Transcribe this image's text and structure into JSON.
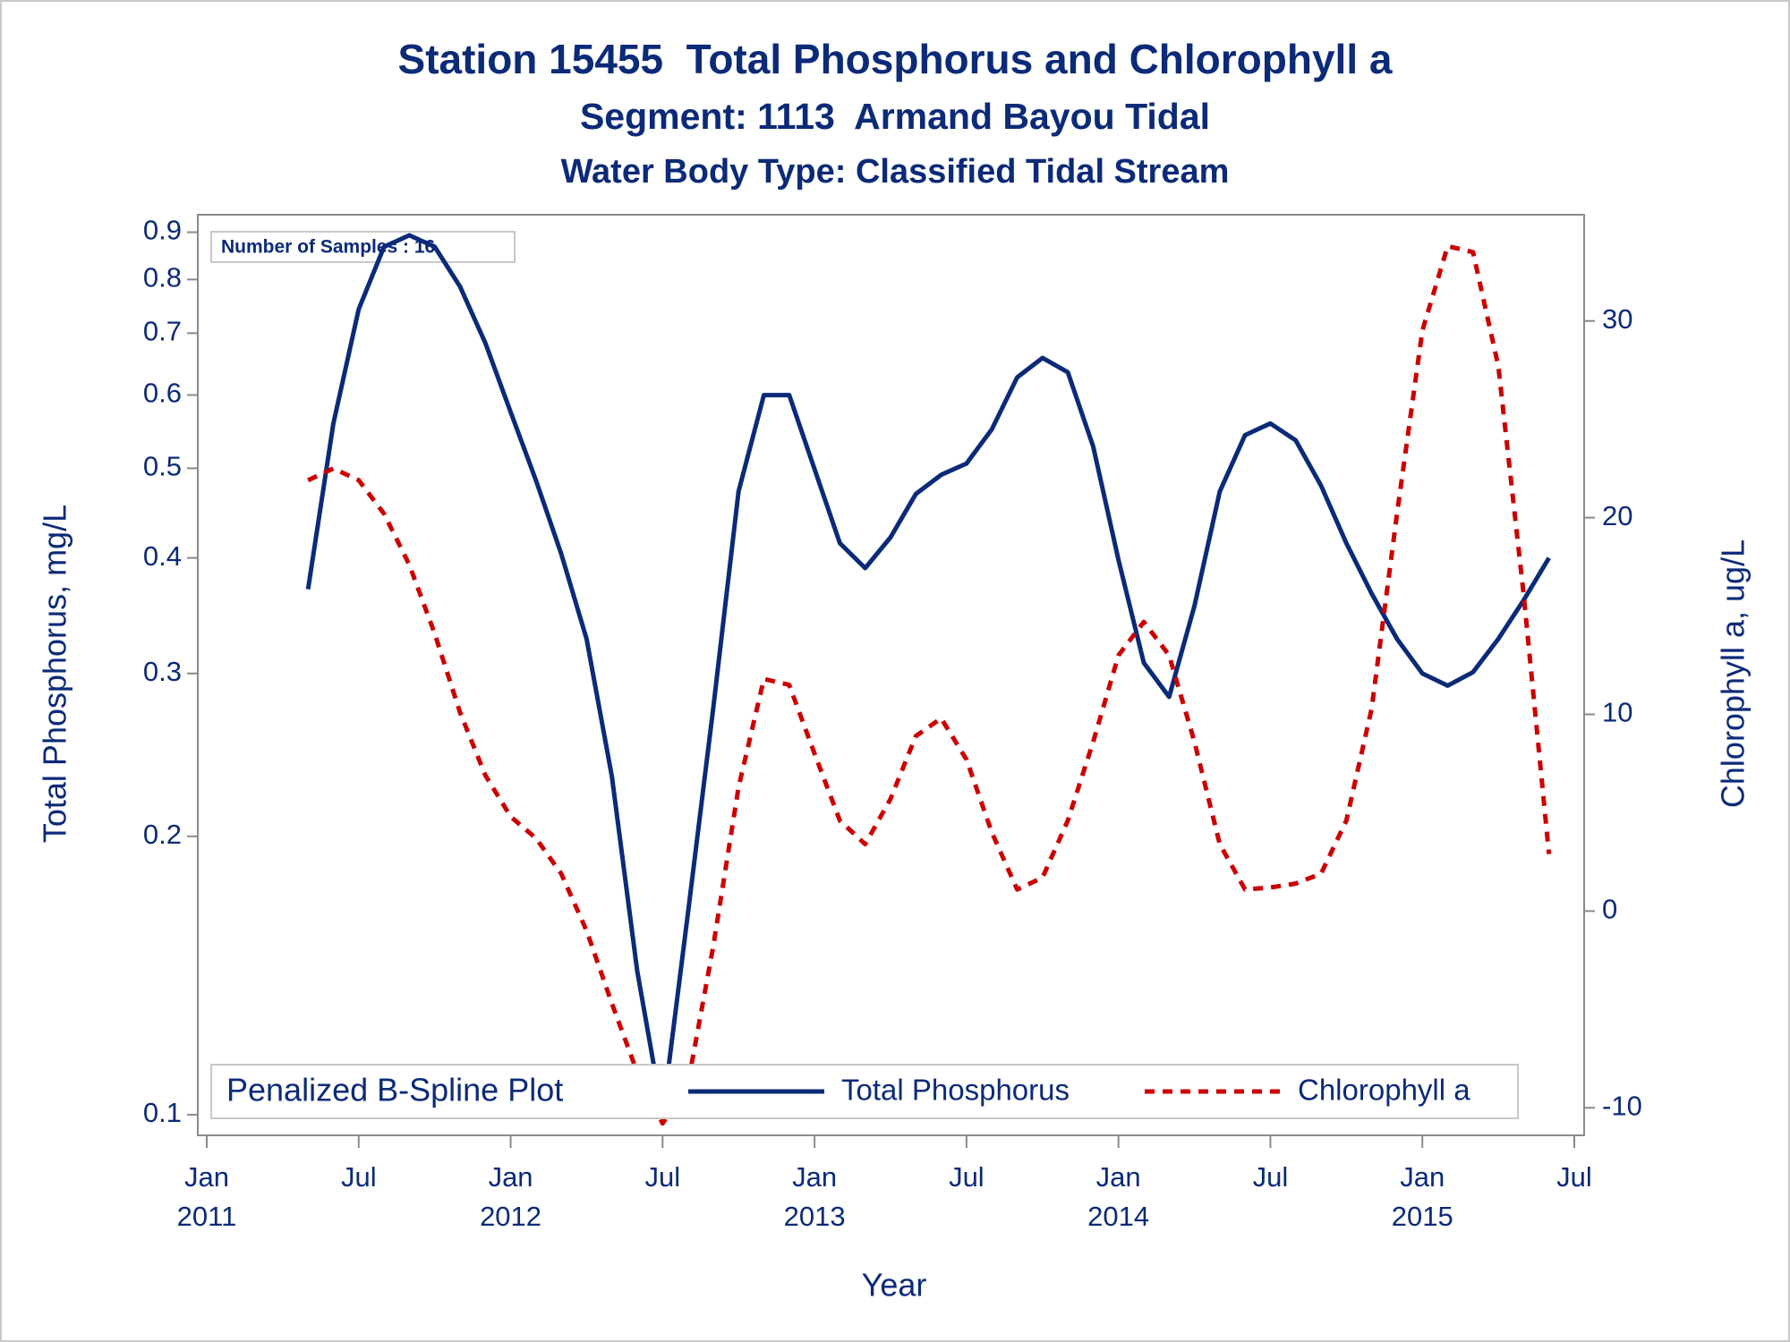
{
  "chart_data": {
    "type": "line",
    "title": "Station 15455  Total Phosphorus and Chlorophyll a",
    "subtitle": [
      "Segment: 1113  Armand Bayou Tidal",
      "Water Body Type: Classified Tidal Stream"
    ],
    "annotation": "Number of Samples : 16",
    "legend_title": "Penalized B-Spline Plot",
    "legend_position": "bottom-left",
    "x_label": "Year",
    "y_label": "Total Phosphorus, mg/L",
    "y2_label": "Chlorophyll a, ug/L",
    "x": [
      "2011-05",
      "2011-06",
      "2011-07",
      "2011-08",
      "2011-09",
      "2011-10",
      "2011-11",
      "2011-12",
      "2012-01",
      "2012-02",
      "2012-03",
      "2012-04",
      "2012-05",
      "2012-06",
      "2012-07",
      "2012-08",
      "2012-09",
      "2012-10",
      "2012-11",
      "2012-12",
      "2013-01",
      "2013-02",
      "2013-03",
      "2013-04",
      "2013-05",
      "2013-06",
      "2013-07",
      "2013-08",
      "2013-09",
      "2013-10",
      "2013-11",
      "2013-12",
      "2014-01",
      "2014-02",
      "2014-03",
      "2014-04",
      "2014-05",
      "2014-06",
      "2014-07",
      "2014-08",
      "2014-09",
      "2014-10",
      "2014-11",
      "2014-12",
      "2015-01",
      "2015-02",
      "2015-03",
      "2015-04",
      "2015-05",
      "2015-06"
    ],
    "xlim": [
      "2011-01",
      "2015-07"
    ],
    "xticks": [
      {
        "value": "2011-01",
        "label": "Jan",
        "year": "2011"
      },
      {
        "value": "2011-07",
        "label": "Jul"
      },
      {
        "value": "2012-01",
        "label": "Jan",
        "year": "2012"
      },
      {
        "value": "2012-07",
        "label": "Jul"
      },
      {
        "value": "2013-01",
        "label": "Jan",
        "year": "2013"
      },
      {
        "value": "2013-07",
        "label": "Jul"
      },
      {
        "value": "2014-01",
        "label": "Jan",
        "year": "2014"
      },
      {
        "value": "2014-07",
        "label": "Jul"
      },
      {
        "value": "2015-01",
        "label": "Jan",
        "year": "2015"
      },
      {
        "value": "2015-07",
        "label": "Jul"
      }
    ],
    "yscale": "log",
    "ylim": [
      0.095,
      0.94
    ],
    "yticks": [
      0.1,
      0.2,
      0.3,
      0.4,
      0.5,
      0.6,
      0.7,
      0.8,
      0.9
    ],
    "y2lim": [
      -11.4,
      35.4
    ],
    "y2ticks": [
      -10,
      0,
      10,
      20,
      30
    ],
    "series": [
      {
        "name": "Total Phosphorus",
        "color": "#0b2a78",
        "line_style": "solid",
        "values": [
          0.37,
          0.559,
          0.743,
          0.868,
          0.893,
          0.868,
          0.786,
          0.683,
          0.575,
          0.485,
          0.404,
          0.327,
          0.232,
          0.143,
          0.1,
          0.165,
          0.275,
          0.472,
          0.6,
          0.6,
          0.499,
          0.415,
          0.39,
          0.421,
          0.469,
          0.492,
          0.506,
          0.551,
          0.627,
          0.658,
          0.635,
          0.528,
          0.398,
          0.308,
          0.283,
          0.355,
          0.472,
          0.543,
          0.559,
          0.536,
          0.479,
          0.415,
          0.366,
          0.327,
          0.3,
          0.291,
          0.301,
          0.327,
          0.36,
          0.4
        ]
      },
      {
        "name": "Chlorophyll a",
        "color": "#cc0000",
        "line_style": "dashed",
        "axis": "y2",
        "values": [
          21.9,
          22.5,
          21.9,
          20.2,
          17.6,
          14.1,
          10.1,
          6.9,
          4.8,
          3.7,
          1.9,
          -1,
          -4.7,
          -8.2,
          -10.8,
          -8.8,
          -1.8,
          6.3,
          11.8,
          11.5,
          8,
          4.6,
          3.4,
          5.7,
          8.9,
          9.8,
          7.7,
          4,
          1.1,
          1.7,
          4.6,
          8.6,
          13,
          14.7,
          13,
          8.6,
          3.4,
          1.1,
          1.2,
          1.4,
          1.9,
          4.6,
          10.3,
          20.2,
          29.5,
          33.8,
          33.5,
          27.7,
          16.1,
          2.9
        ]
      }
    ]
  }
}
